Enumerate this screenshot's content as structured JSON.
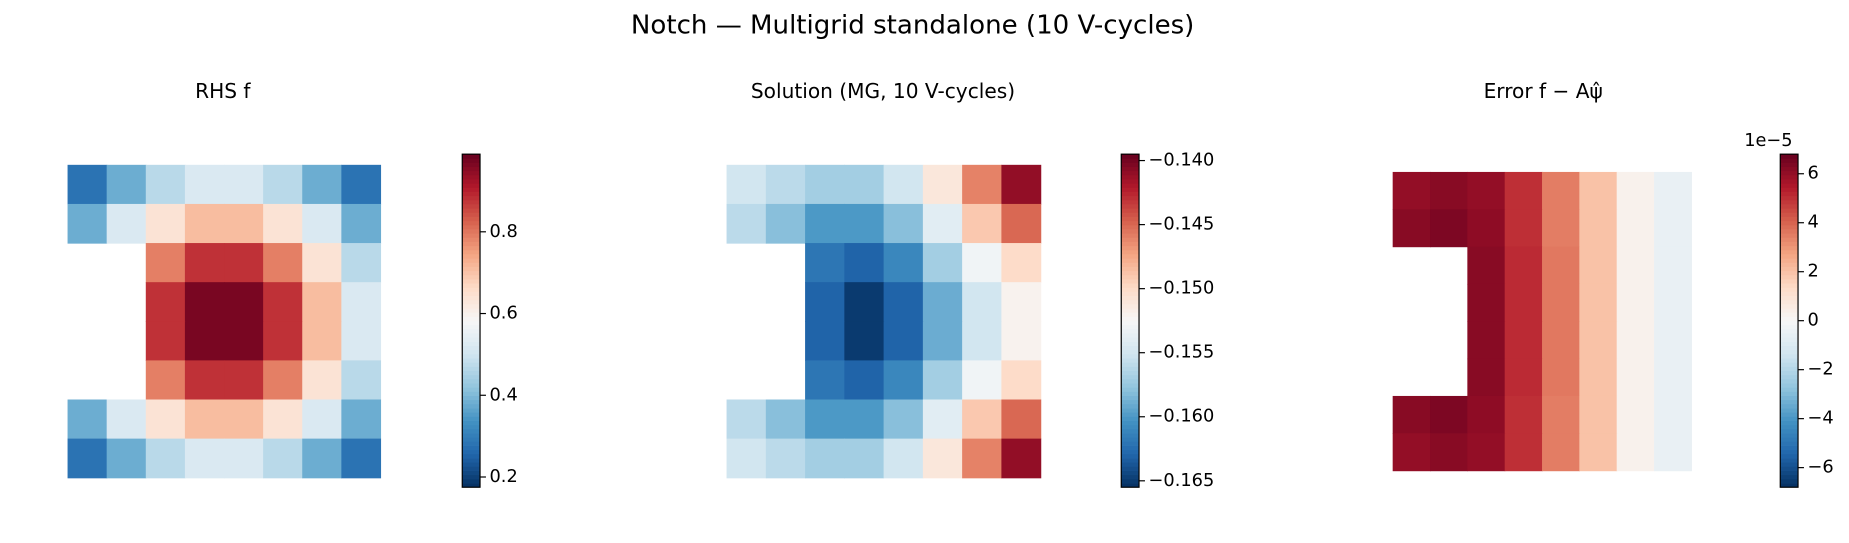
{
  "title": "Notch — Multigrid standalone (10 V-cycles)",
  "chart_data": [
    {
      "type": "heatmap",
      "title": "RHS  f",
      "colormap": "RdBu_r",
      "values": [
        [
          0.28,
          0.38,
          0.47,
          0.52,
          0.52,
          0.47,
          0.38,
          0.28
        ],
        [
          0.38,
          0.52,
          0.64,
          0.71,
          0.71,
          0.64,
          0.52,
          0.38
        ],
        [
          null,
          null,
          0.79,
          0.88,
          0.88,
          0.79,
          0.64,
          0.47
        ],
        [
          null,
          null,
          0.88,
          0.97,
          0.97,
          0.88,
          0.71,
          0.52
        ],
        [
          null,
          null,
          0.88,
          0.97,
          0.97,
          0.88,
          0.71,
          0.52
        ],
        [
          null,
          null,
          0.79,
          0.88,
          0.88,
          0.79,
          0.64,
          0.47
        ],
        [
          0.38,
          0.52,
          0.64,
          0.71,
          0.71,
          0.64,
          0.52,
          0.38
        ],
        [
          0.28,
          0.38,
          0.47,
          0.52,
          0.52,
          0.47,
          0.38,
          0.28
        ]
      ],
      "zlim": [
        0.175,
        0.99
      ],
      "zticks": [
        0.2,
        0.4,
        0.6,
        0.8
      ]
    },
    {
      "type": "heatmap",
      "title": "Solution  (MG, 10 V-cycles)",
      "colormap": "RdBu_r",
      "values": [
        [
          -0.155,
          -0.156,
          -0.157,
          -0.157,
          -0.155,
          -0.151,
          -0.146,
          -0.141
        ],
        [
          -0.156,
          -0.158,
          -0.16,
          -0.16,
          -0.158,
          -0.154,
          -0.149,
          -0.145
        ],
        [
          null,
          null,
          -0.162,
          -0.163,
          -0.161,
          -0.157,
          -0.153,
          -0.15
        ],
        [
          null,
          null,
          -0.163,
          -0.165,
          -0.163,
          -0.159,
          -0.155,
          -0.152
        ],
        [
          null,
          null,
          -0.163,
          -0.165,
          -0.163,
          -0.159,
          -0.155,
          -0.152
        ],
        [
          null,
          null,
          -0.162,
          -0.163,
          -0.161,
          -0.157,
          -0.153,
          -0.15
        ],
        [
          -0.156,
          -0.158,
          -0.16,
          -0.16,
          -0.158,
          -0.154,
          -0.149,
          -0.145
        ],
        [
          -0.155,
          -0.156,
          -0.157,
          -0.157,
          -0.155,
          -0.151,
          -0.146,
          -0.141
        ]
      ],
      "zlim": [
        -0.1655,
        -0.1395
      ],
      "zticks": [
        {
          "value": -0.14,
          "label": "−0.140"
        },
        {
          "value": -0.145,
          "label": "−0.145"
        },
        {
          "value": -0.15,
          "label": "−0.150"
        },
        {
          "value": -0.155,
          "label": "−0.155"
        },
        {
          "value": -0.16,
          "label": "−0.160"
        },
        {
          "value": -0.165,
          "label": "−0.165"
        }
      ]
    },
    {
      "type": "heatmap",
      "title": "Error  f − Aψ̂",
      "colormap": "RdBu_r",
      "offset_label": "1e−5",
      "values": [
        [
          6.0,
          6.2,
          6.0,
          5.0,
          3.5,
          2.0,
          0.3,
          -0.5
        ],
        [
          6.2,
          6.4,
          6.1,
          5.0,
          3.5,
          2.0,
          0.3,
          -0.5
        ],
        [
          null,
          null,
          6.2,
          5.1,
          3.6,
          2.0,
          0.3,
          -0.5
        ],
        [
          null,
          null,
          6.2,
          5.1,
          3.6,
          2.0,
          0.3,
          -0.5
        ],
        [
          null,
          null,
          6.2,
          5.1,
          3.6,
          2.0,
          0.3,
          -0.5
        ],
        [
          null,
          null,
          6.2,
          5.1,
          3.6,
          2.0,
          0.3,
          -0.5
        ],
        [
          6.2,
          6.4,
          6.1,
          5.0,
          3.5,
          2.0,
          0.3,
          -0.5
        ],
        [
          6.0,
          6.2,
          6.0,
          5.0,
          3.5,
          2.0,
          0.3,
          -0.5
        ]
      ],
      "zlim": [
        -6.8,
        6.8
      ],
      "zticks": [
        {
          "value": -6,
          "label": "−6"
        },
        {
          "value": -4,
          "label": "−4"
        },
        {
          "value": -2,
          "label": "−2"
        },
        0,
        2,
        4,
        6
      ]
    }
  ]
}
